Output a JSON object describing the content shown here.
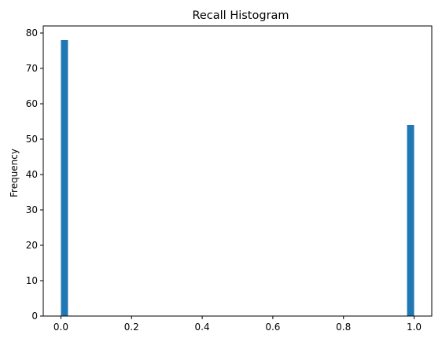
{
  "chart_data": {
    "type": "bar",
    "title": "Recall Histogram",
    "xlabel": "",
    "ylabel": "Frequency",
    "xlim": [
      -0.05,
      1.05
    ],
    "ylim": [
      0,
      82
    ],
    "x_ticks": [
      0.0,
      0.2,
      0.4,
      0.6,
      0.8,
      1.0
    ],
    "x_tick_labels": [
      "0.0",
      "0.2",
      "0.4",
      "0.6",
      "0.8",
      "1.0"
    ],
    "y_ticks": [
      0,
      10,
      20,
      30,
      40,
      50,
      60,
      70,
      80
    ],
    "y_tick_labels": [
      "0",
      "10",
      "20",
      "30",
      "40",
      "50",
      "60",
      "70",
      "80"
    ],
    "bin_width": 0.02,
    "bins": [
      {
        "start": 0.0,
        "end": 0.02,
        "value": 78
      },
      {
        "start": 0.98,
        "end": 1.0,
        "value": 54
      }
    ],
    "bar_color": "#1f77b4",
    "grid": false,
    "legend": "none"
  }
}
